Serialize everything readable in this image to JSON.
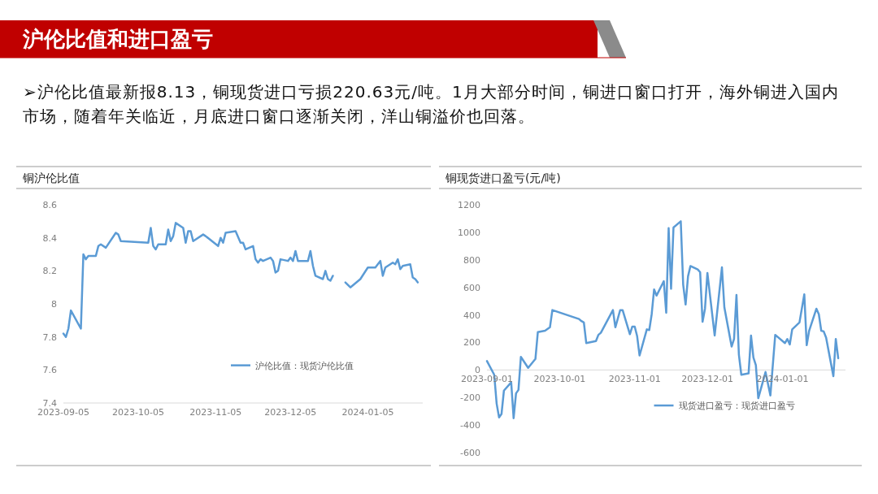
{
  "chart_data": [
    {
      "type": "line",
      "title": "铜沪伦比值",
      "annotations": [
        "沪伦比值和进口盈亏",
        "➢沪伦比值最新报8.13，铜现货进口亏损220.63元/吨。1月大部分时间，铜进口窗口打开，海外铜进入国内市场，随着年关临近，月底进口窗口逐渐关闭，洋山铜溢价也回落。"
      ],
      "xlim": [
        "2023-09-05",
        "2024-01-27"
      ],
      "xticks": [
        {
          "value": "2023-09-05",
          "label": "2023-09-05"
        },
        {
          "value": "2023-10-05",
          "label": "2023-10-05"
        },
        {
          "value": "2023-11-05",
          "label": "2023-11-05"
        },
        {
          "value": "2023-12-05",
          "label": "2023-12-05"
        },
        {
          "value": "2024-01-05",
          "label": "2024-01-05"
        }
      ],
      "ylim": [
        7.4,
        8.6
      ],
      "yticks": [
        7.4,
        7.6,
        7.8,
        8,
        8.2,
        8.4,
        8.6
      ],
      "legend": "bottom",
      "series": [
        {
          "name": "沪伦比值：现货沪伦比值",
          "color": "#5b9bd5",
          "x": [
            "2023-09-05",
            "2023-09-06",
            "2023-09-07",
            "2023-09-08",
            "2023-09-12",
            "2023-09-13",
            "2023-09-14",
            "2023-09-15",
            "2023-09-18",
            "2023-09-19",
            "2023-09-20",
            "2023-09-22",
            "2023-09-26",
            "2023-09-27",
            "2023-09-28",
            "2023-10-09",
            "2023-10-10",
            "2023-10-11",
            "2023-10-12",
            "2023-10-13",
            "2023-10-16",
            "2023-10-17",
            "2023-10-18",
            "2023-10-19",
            "2023-10-20",
            "2023-10-23",
            "2023-10-24",
            "2023-10-25",
            "2023-10-26",
            "2023-10-27",
            "2023-10-31",
            "2023-11-01",
            "2023-11-06",
            "2023-11-07",
            "2023-11-08",
            "2023-11-09",
            "2023-11-13",
            "2023-11-15",
            "2023-11-16",
            "2023-11-17",
            "2023-11-20",
            "2023-11-21",
            "2023-11-22",
            "2023-11-23",
            "2023-11-24",
            "2023-11-27",
            "2023-11-28",
            "2023-11-29",
            "2023-11-30",
            "2023-12-01",
            "2023-12-04",
            "2023-12-05",
            "2023-12-06",
            "2023-12-07",
            "2023-12-08",
            "2023-12-12",
            "2023-12-13",
            "2023-12-14",
            "2023-12-15",
            "2023-12-18",
            "2023-12-19",
            "2023-12-20",
            "2023-12-21",
            "2023-12-22"
          ],
          "values": [
            7.82,
            7.8,
            7.85,
            7.96,
            7.85,
            8.3,
            8.27,
            8.29,
            8.29,
            8.35,
            8.36,
            8.34,
            8.43,
            8.42,
            8.38,
            8.37,
            8.46,
            8.35,
            8.33,
            8.36,
            8.36,
            8.45,
            8.38,
            8.41,
            8.49,
            8.46,
            8.37,
            8.44,
            8.44,
            8.38,
            8.42,
            8.41,
            8.35,
            8.4,
            8.37,
            8.43,
            8.44,
            8.37,
            8.37,
            8.33,
            8.35,
            8.27,
            8.25,
            8.27,
            8.26,
            8.28,
            8.26,
            8.19,
            8.2,
            8.27,
            8.26,
            8.28,
            8.26,
            8.32,
            8.26,
            8.26,
            8.32,
            8.23,
            8.17,
            8.15,
            8.2,
            8.15,
            8.14,
            8.17
          ]
        },
        {
          "color": "#5b9bd5",
          "x": [
            "2023-12-27",
            "2023-12-29",
            "2024-01-02",
            "2024-01-05",
            "2024-01-08",
            "2024-01-10",
            "2024-01-11",
            "2024-01-12",
            "2024-01-15",
            "2024-01-16",
            "2024-01-17",
            "2024-01-18",
            "2024-01-19",
            "2024-01-22",
            "2024-01-23",
            "2024-01-24",
            "2024-01-25"
          ],
          "values": [
            8.13,
            8.1,
            8.15,
            8.22,
            8.22,
            8.26,
            8.17,
            8.22,
            8.25,
            8.24,
            8.27,
            8.21,
            8.23,
            8.24,
            8.16,
            8.15,
            8.13
          ]
        }
      ]
    },
    {
      "type": "line",
      "title": "铜现货进口盈亏(元/吨)",
      "xlim": [
        "2023-09-01",
        "2024-01-27"
      ],
      "xticks": [
        {
          "value": "2023-09-01",
          "label": "2023-09-01"
        },
        {
          "value": "2023-10-01",
          "label": "2023-10-01"
        },
        {
          "value": "2023-11-01",
          "label": "2023-11-01"
        },
        {
          "value": "2023-12-01",
          "label": "2023-12-01"
        },
        {
          "value": "2024-01-01",
          "label": "2024-01-01"
        }
      ],
      "ylim": [
        -600,
        1200
      ],
      "yticks": [
        -600,
        -400,
        -200,
        0,
        200,
        400,
        600,
        800,
        1000,
        1200
      ],
      "legend": "bottom",
      "series": [
        {
          "name": "现货进口盈亏：现货进口盈亏",
          "color": "#5b9bd5",
          "x": [
            "2023-09-01",
            "2023-09-04",
            "2023-09-05",
            "2023-09-06",
            "2023-09-07",
            "2023-09-08",
            "2023-09-11",
            "2023-09-12",
            "2023-09-13",
            "2023-09-14",
            "2023-09-15",
            "2023-09-18",
            "2023-09-21",
            "2023-09-22",
            "2023-09-25",
            "2023-09-27",
            "2023-09-28",
            "2023-10-09",
            "2023-10-10",
            "2023-10-11",
            "2023-10-12",
            "2023-10-16",
            "2023-10-17",
            "2023-10-18",
            "2023-10-23",
            "2023-10-24",
            "2023-10-26",
            "2023-10-27",
            "2023-10-30",
            "2023-10-31",
            "2023-11-01",
            "2023-11-02",
            "2023-11-03",
            "2023-11-06",
            "2023-11-07",
            "2023-11-08",
            "2023-11-09",
            "2023-11-10",
            "2023-11-13",
            "2023-11-14",
            "2023-11-15",
            "2023-11-16",
            "2023-11-17",
            "2023-11-20",
            "2023-11-21",
            "2023-11-22",
            "2023-11-23",
            "2023-11-24",
            "2023-11-27",
            "2023-11-28",
            "2023-11-29",
            "2023-11-30",
            "2023-12-01",
            "2023-12-04",
            "2023-12-07",
            "2023-12-08",
            "2023-12-11",
            "2023-12-12",
            "2023-12-13",
            "2023-12-14",
            "2023-12-15",
            "2023-12-18",
            "2023-12-19",
            "2023-12-20",
            "2023-12-21",
            "2023-12-22",
            "2023-12-25",
            "2023-12-27",
            "2023-12-29",
            "2024-01-02",
            "2024-01-03",
            "2024-01-04",
            "2024-01-05",
            "2024-01-08",
            "2024-01-10",
            "2024-01-11",
            "2024-01-12",
            "2024-01-15",
            "2024-01-16",
            "2024-01-17",
            "2024-01-18",
            "2024-01-19",
            "2024-01-22",
            "2024-01-23",
            "2024-01-24"
          ],
          "values": [
            65,
            -35,
            -245,
            -345,
            -320,
            -150,
            -90,
            -350,
            -170,
            -145,
            95,
            15,
            80,
            275,
            285,
            310,
            435,
            370,
            355,
            345,
            195,
            210,
            255,
            270,
            435,
            310,
            435,
            435,
            260,
            315,
            315,
            245,
            105,
            295,
            290,
            405,
            585,
            540,
            645,
            415,
            1030,
            590,
            1035,
            1080,
            620,
            475,
            680,
            755,
            730,
            710,
            350,
            445,
            705,
            250,
            745,
            455,
            170,
            225,
            545,
            110,
            -35,
            -25,
            250,
            90,
            35,
            -205,
            -15,
            -185,
            255,
            195,
            225,
            185,
            295,
            345,
            550,
            180,
            285,
            445,
            405,
            285,
            280,
            235,
            -45,
            225,
            85
          ]
        }
      ]
    }
  ]
}
